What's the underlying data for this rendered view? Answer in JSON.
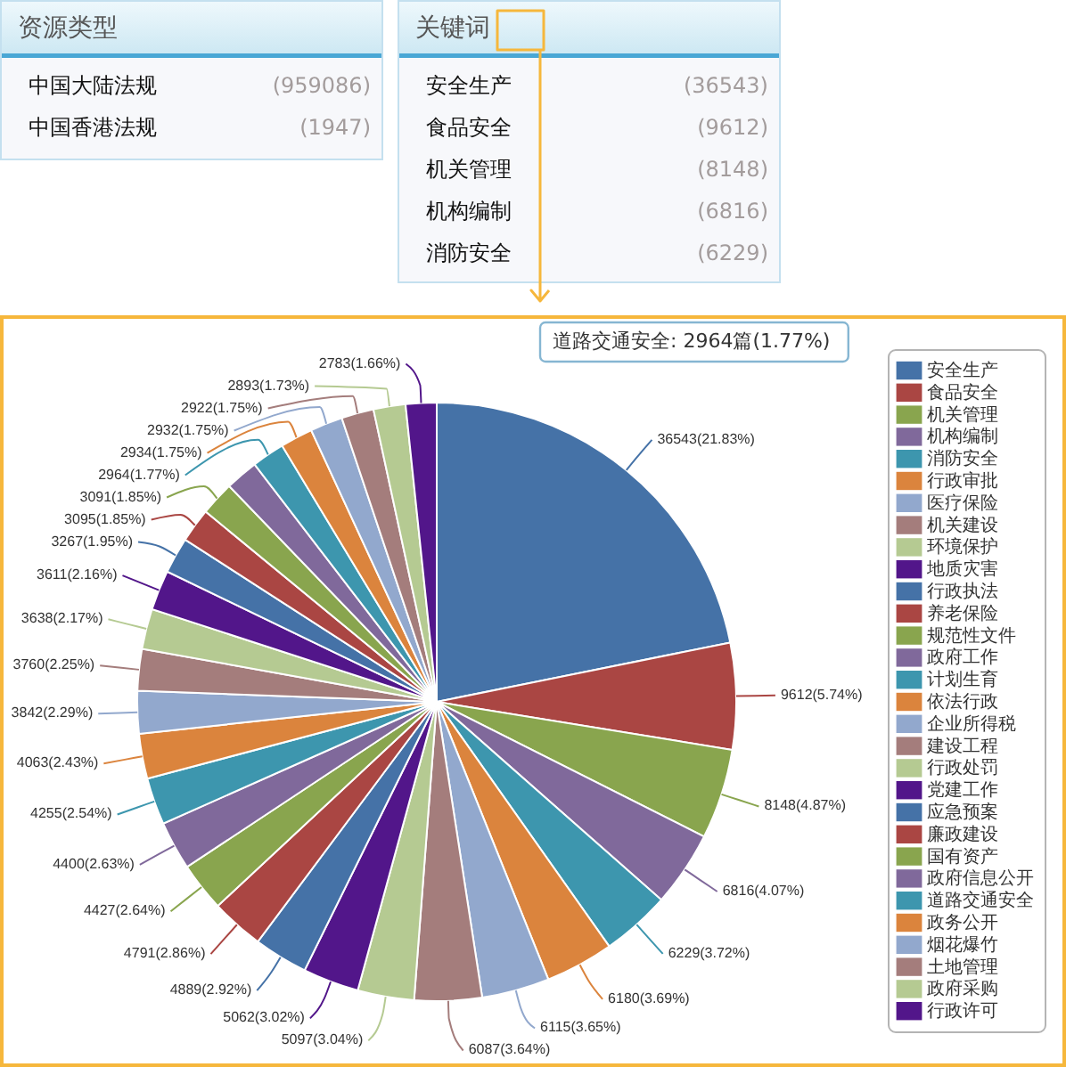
{
  "chart_data": [
    {
      "type": "other",
      "title": "资源类型",
      "categories": [
        "中国大陆法规",
        "中国香港法规"
      ],
      "value_labels": [
        "(959086)",
        "(1947)"
      ]
    },
    {
      "type": "other",
      "title": "关键词",
      "categories": [
        "安全生产",
        "食品安全",
        "机关管理",
        "机构编制",
        "消防安全"
      ],
      "value_labels": [
        "(36543)",
        "(9612)",
        "(8148)",
        "(6816)",
        "(6229)"
      ]
    },
    {
      "type": "pie",
      "categories": [
        "安全生产",
        "食品安全",
        "机关管理",
        "机构编制",
        "消防安全",
        "行政审批",
        "医疗保险",
        "机关建设",
        "环境保护",
        "地质灾害",
        "行政执法",
        "养老保险",
        "规范性文件",
        "政府工作",
        "计划生育",
        "依法行政",
        "企业所得税",
        "建设工程",
        "行政处罚",
        "党建工作",
        "应急预案",
        "廉政建设",
        "国有资产",
        "政府信息公开",
        "道路交通安全",
        "政务公开",
        "烟花爆竹",
        "土地管理",
        "政府采购",
        "行政许可"
      ],
      "values": [
        36543,
        9612,
        8148,
        6816,
        6229,
        6180,
        6115,
        6087,
        5097,
        5062,
        4889,
        4791,
        4427,
        4400,
        4255,
        4063,
        3842,
        3760,
        3638,
        3611,
        3267,
        3095,
        3091,
        2975,
        2964,
        2934,
        2932,
        2922,
        2893,
        2783
      ],
      "value_labels": [
        "36543(21.83%)",
        "9612(5.74%)",
        "8148(4.87%)",
        "6816(4.07%)",
        "6229(3.72%)",
        "6180(3.69%)",
        "6115(3.65%)",
        "6087(3.64%)",
        "5097(3.04%)",
        "5062(3.02%)",
        "4889(2.92%)",
        "4791(2.86%)",
        "4427(2.64%)",
        "4400(2.63%)",
        "4255(2.54%)",
        "4063(2.43%)",
        "3842(2.29%)",
        "3760(2.25%)",
        "3638(2.17%)",
        "3611(2.16%)",
        "3267(1.95%)",
        "3095(1.85%)",
        "3091(1.85%)",
        null,
        "2964(1.77%)",
        "2934(1.75%)",
        "2932(1.75%)",
        "2922(1.75%)",
        "2893(1.73%)",
        "2783(1.66%)"
      ],
      "colors": [
        "#4572a7",
        "#aa4643",
        "#89a54e",
        "#80699b",
        "#3d96ae",
        "#db843d",
        "#92a8cd",
        "#a47d7c",
        "#b5ca92",
        "#52168a",
        "#4572a7",
        "#aa4643",
        "#89a54e",
        "#80699b",
        "#3d96ae",
        "#db843d",
        "#92a8cd",
        "#a47d7c",
        "#b5ca92",
        "#52168a",
        "#4572a7",
        "#aa4643",
        "#89a54e",
        "#80699b",
        "#3d96ae",
        "#db843d",
        "#92a8cd",
        "#a47d7c",
        "#b5ca92",
        "#52168a"
      ],
      "legend": "right",
      "annotations": [
        "道路交通安全: 2964篇(1.77%)"
      ]
    }
  ]
}
